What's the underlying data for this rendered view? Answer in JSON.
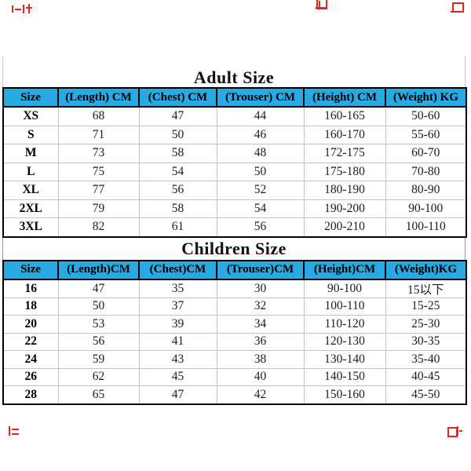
{
  "page": {
    "background": "#ffffff",
    "description": "Garment size chart with adult and children measurement tables"
  },
  "colors": {
    "header_background": "#29a9e2",
    "outer_border": "#000000",
    "grid_line": "#c0c3c6",
    "watermark_red": "#e02619",
    "text": "#1c1c1c"
  },
  "adult_section": {
    "title": "Adult Size"
  },
  "adult_table": {
    "headers": [
      "Size",
      "(Length) CM",
      "(Chest) CM",
      "(Trouser) CM",
      "(Height) CM",
      "(Weight) KG"
    ],
    "rows": [
      [
        "XS",
        "68",
        "47",
        "44",
        "160-165",
        "50-60"
      ],
      [
        "S",
        "71",
        "50",
        "46",
        "160-170",
        "55-60"
      ],
      [
        "M",
        "73",
        "58",
        "48",
        "172-175",
        "60-70"
      ],
      [
        "L",
        "75",
        "54",
        "50",
        "175-180",
        "70-80"
      ],
      [
        "XL",
        "77",
        "56",
        "52",
        "180-190",
        "80-90"
      ],
      [
        "2XL",
        "79",
        "58",
        "54",
        "190-200",
        "90-100"
      ],
      [
        "3XL",
        "82",
        "61",
        "56",
        "200-210",
        "100-110"
      ]
    ]
  },
  "children_section": {
    "title": "Children Size"
  },
  "children_table": {
    "headers": [
      "Size",
      "(Length)CM",
      "(Chest)CM",
      "(Trouser)CM",
      "(Height)CM",
      "(Weight)KG"
    ],
    "rows": [
      [
        "16",
        "47",
        "35",
        "30",
        "90-100",
        "15以下"
      ],
      [
        "18",
        "50",
        "37",
        "32",
        "100-110",
        "15-25"
      ],
      [
        "20",
        "53",
        "39",
        "34",
        "110-120",
        "25-30"
      ],
      [
        "22",
        "56",
        "41",
        "36",
        "120-130",
        "30-35"
      ],
      [
        "24",
        "59",
        "43",
        "38",
        "130-140",
        "35-40"
      ],
      [
        "26",
        "62",
        "45",
        "40",
        "140-150",
        "40-45"
      ],
      [
        "28",
        "65",
        "47",
        "42",
        "150-160",
        "45-50"
      ]
    ]
  },
  "watermarks": {
    "fragments": [
      "red-watermark-fragment-top-left",
      "red-watermark-fragment-top-center",
      "red-watermark-fragment-top-right",
      "red-watermark-fragment-bottom-left",
      "red-watermark-fragment-bottom-right"
    ]
  }
}
